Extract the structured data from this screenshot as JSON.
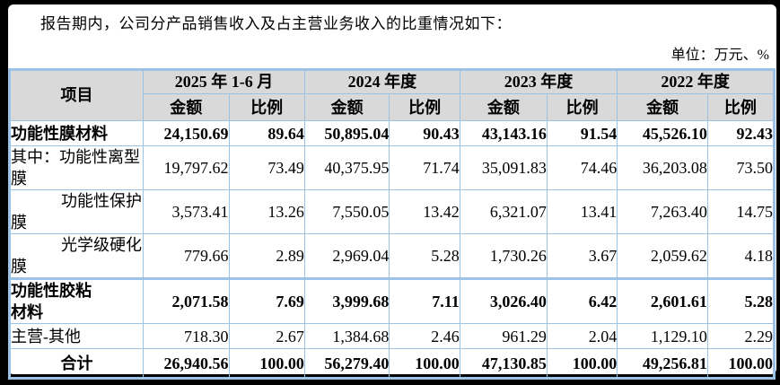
{
  "page": {
    "intro_text": "报告期内，公司分产品销售收入及占主营业务收入的比重情况如下：",
    "unit_label": "单位：万元、%"
  },
  "table": {
    "header": {
      "item_label": "项目",
      "periods": [
        "2025 年 1-6 月",
        "2024 年度",
        "2023 年度",
        "2022 年度"
      ],
      "amount_label": "金额",
      "ratio_label": "比例"
    },
    "rows": [
      {
        "label": "功能性膜材料",
        "style": "bold",
        "values": [
          "24,150.69",
          "89.64",
          "50,895.04",
          "90.43",
          "43,143.16",
          "91.54",
          "45,526.10",
          "92.43"
        ]
      },
      {
        "label": "其中：功能性离型膜",
        "style": "normal",
        "values": [
          "19,797.62",
          "73.49",
          "40,375.95",
          "71.74",
          "35,091.83",
          "74.46",
          "36,203.08",
          "73.50"
        ]
      },
      {
        "label": "功能性保护膜",
        "style": "indent",
        "values": [
          "3,573.41",
          "13.26",
          "7,550.05",
          "13.42",
          "6,321.07",
          "13.41",
          "7,263.40",
          "14.75"
        ]
      },
      {
        "label": "光学级硬化膜",
        "style": "indent",
        "values": [
          "779.66",
          "2.89",
          "2,969.04",
          "5.28",
          "1,730.26",
          "3.67",
          "2,059.62",
          "4.18"
        ]
      },
      {
        "label": "功能性胶粘材料",
        "style": "bold",
        "values": [
          "2,071.58",
          "7.69",
          "3,999.68",
          "7.11",
          "3,026.40",
          "6.42",
          "2,601.61",
          "5.28"
        ]
      },
      {
        "label": "主营-其他",
        "style": "normal",
        "values": [
          "718.30",
          "2.67",
          "1,384.68",
          "2.46",
          "961.29",
          "2.04",
          "1,129.10",
          "2.29"
        ]
      },
      {
        "label": "合计",
        "style": "total",
        "values": [
          "26,940.56",
          "100.00",
          "56,279.40",
          "100.00",
          "47,130.85",
          "100.00",
          "49,256.81",
          "100.00"
        ]
      }
    ]
  },
  "colors": {
    "table_border": "#9cc2e5",
    "header_bg": "#d9d9d9",
    "page_bg": "#ffffff",
    "frame_bg": "#000000",
    "text": "#000000"
  }
}
